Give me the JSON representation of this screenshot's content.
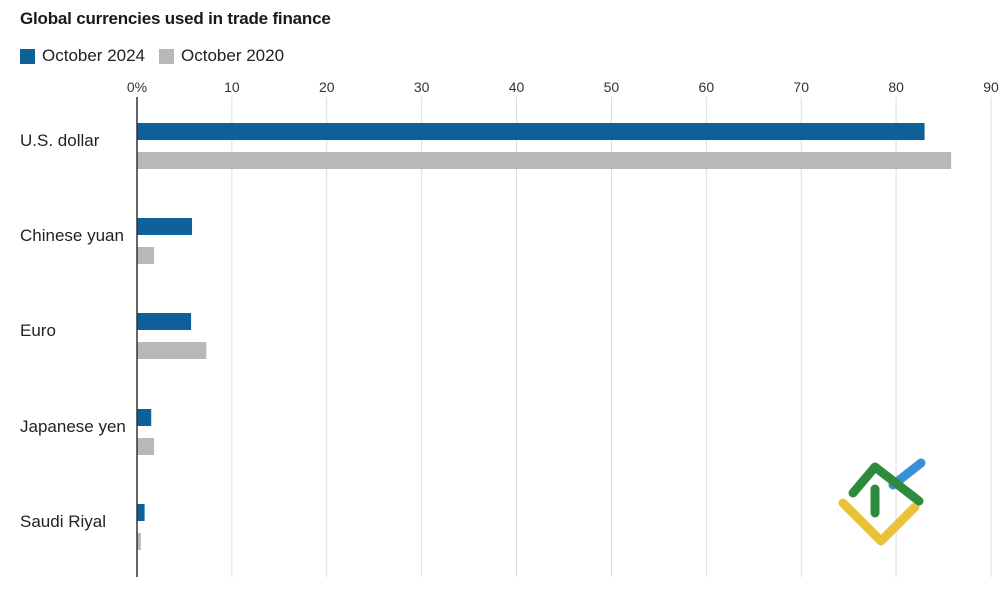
{
  "chart_data": {
    "type": "bar",
    "orientation": "horizontal",
    "title": "Global currencies used in trade finance",
    "categories": [
      "U.S. dollar",
      "Chinese yuan",
      "Euro",
      "Japanese yen",
      "Saudi Riyal"
    ],
    "series": [
      {
        "name": "October 2024",
        "color": "#0f5f99",
        "values": [
          83.0,
          5.8,
          5.7,
          1.5,
          0.8
        ]
      },
      {
        "name": "October 2020",
        "color": "#b8b8b8",
        "values": [
          85.8,
          1.8,
          7.3,
          1.8,
          0.4
        ]
      }
    ],
    "x_ticks": [
      "0%",
      "10",
      "20",
      "30",
      "40",
      "50",
      "60",
      "70",
      "80",
      "90"
    ],
    "xlim": [
      0,
      90
    ],
    "grid": true,
    "legend_position": "top-left"
  },
  "logo": {
    "name": "logo-mark",
    "colors": [
      "#2e8b3d",
      "#3a8fd6",
      "#e9c23a"
    ]
  }
}
